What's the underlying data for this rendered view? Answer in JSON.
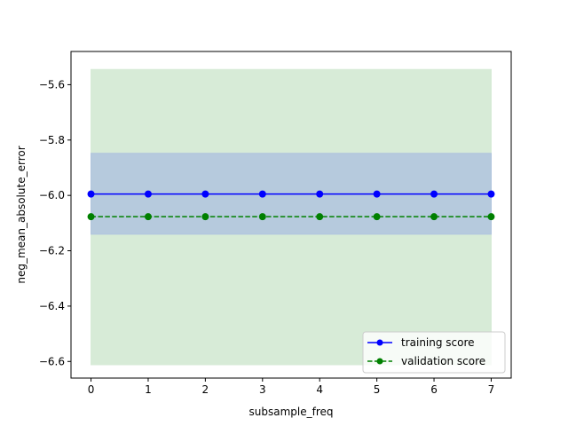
{
  "chart_data": {
    "type": "line",
    "title": "",
    "xlabel": "subsample_freq",
    "ylabel": "neg_mean_absolute_error",
    "x": [
      0,
      1,
      2,
      3,
      4,
      5,
      6,
      7
    ],
    "xlim": [
      -0.35,
      7.35
    ],
    "ylim": [
      -6.66,
      -5.48
    ],
    "x_ticks": [
      0,
      1,
      2,
      3,
      4,
      5,
      6,
      7
    ],
    "y_ticks": [
      -6.6,
      -6.4,
      -6.2,
      -6.0,
      -5.8,
      -5.6
    ],
    "x_tick_labels": [
      "0",
      "1",
      "2",
      "3",
      "4",
      "5",
      "6",
      "7"
    ],
    "y_tick_labels": [
      "−6.6",
      "−6.4",
      "−6.2",
      "−6.0",
      "−5.8",
      "−5.6"
    ],
    "grid": false,
    "legend_position": "lower-right",
    "series": [
      {
        "name": "training score",
        "values": [
          -5.995,
          -5.995,
          -5.995,
          -5.995,
          -5.995,
          -5.995,
          -5.995,
          -5.995
        ],
        "band_lower": [
          -6.14,
          -6.14,
          -6.14,
          -6.14,
          -6.14,
          -6.14,
          -6.14,
          -6.14
        ],
        "band_upper": [
          -5.848,
          -5.848,
          -5.848,
          -5.848,
          -5.848,
          -5.848,
          -5.848,
          -5.848
        ],
        "color": "#0000ff",
        "band_color": "#b0c4de",
        "line_style": "solid",
        "marker": "circle"
      },
      {
        "name": "validation score",
        "values": [
          -6.077,
          -6.077,
          -6.077,
          -6.077,
          -6.077,
          -6.077,
          -6.077,
          -6.077
        ],
        "band_lower": [
          -6.612,
          -6.612,
          -6.612,
          -6.612,
          -6.612,
          -6.612,
          -6.612,
          -6.612
        ],
        "band_upper": [
          -5.545,
          -5.545,
          -5.545,
          -5.545,
          -5.545,
          -5.545,
          -5.545,
          -5.545
        ],
        "color": "#008000",
        "band_color": "#d7ebd7",
        "line_style": "dashed",
        "marker": "circle"
      }
    ]
  }
}
